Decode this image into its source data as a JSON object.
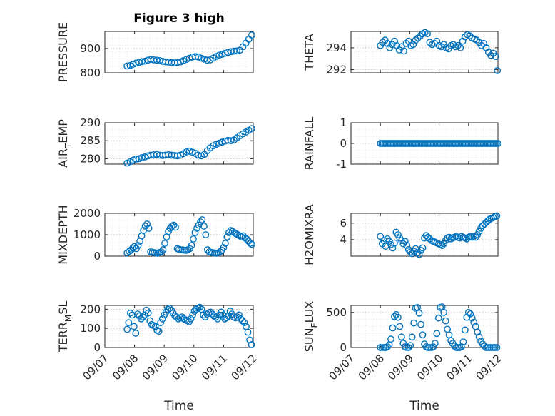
{
  "figure": {
    "title": "Figure 3 high",
    "xlabel": "Time",
    "x_ticks": [
      "09/07",
      "09/08",
      "09/09",
      "09/10",
      "09/11",
      "09/12"
    ]
  },
  "colors": {
    "series": "#0072BD",
    "axis": "#262626"
  },
  "chart_data": [
    {
      "type": "scatter",
      "id": "pressure",
      "ylabel": "PRESSURE",
      "xlim": [
        0,
        5
      ],
      "ylim": [
        800,
        970
      ],
      "yticks": [
        800,
        900
      ],
      "grid": true,
      "x": [
        0.75,
        0.85,
        0.95,
        1.05,
        1.15,
        1.25,
        1.35,
        1.45,
        1.55,
        1.65,
        1.75,
        1.85,
        1.95,
        2.05,
        2.15,
        2.25,
        2.35,
        2.45,
        2.55,
        2.65,
        2.75,
        2.85,
        2.95,
        3.05,
        3.15,
        3.25,
        3.35,
        3.45,
        3.55,
        3.65,
        3.75,
        3.85,
        3.95,
        4.05,
        4.15,
        4.25,
        4.35,
        4.45,
        4.55,
        4.65,
        4.75,
        4.85,
        4.95
      ],
      "y": [
        828,
        830,
        835,
        840,
        843,
        846,
        848,
        852,
        855,
        853,
        852,
        850,
        847,
        845,
        844,
        842,
        841,
        842,
        845,
        850,
        855,
        860,
        865,
        867,
        865,
        860,
        856,
        852,
        853,
        860,
        867,
        872,
        876,
        880,
        884,
        887,
        889,
        890,
        893,
        907,
        922,
        938,
        955
      ]
    },
    {
      "type": "scatter",
      "id": "theta",
      "ylabel": "THETA",
      "xlim": [
        0,
        5
      ],
      "ylim": [
        291.7,
        295.5
      ],
      "yticks": [
        292,
        294
      ],
      "grid": true,
      "x": [
        1.0,
        1.08,
        1.16,
        1.24,
        1.32,
        1.4,
        1.48,
        1.56,
        1.64,
        1.72,
        1.8,
        1.88,
        1.96,
        2.04,
        2.12,
        2.2,
        2.28,
        2.36,
        2.44,
        2.52,
        2.6,
        2.68,
        2.76,
        2.84,
        2.92,
        3.0,
        3.08,
        3.16,
        3.24,
        3.32,
        3.4,
        3.48,
        3.56,
        3.64,
        3.72,
        3.8,
        3.88,
        3.96,
        4.04,
        4.12,
        4.2,
        4.28,
        4.36,
        4.44,
        4.52,
        4.6,
        4.68,
        4.76,
        4.84,
        4.92,
        4.98
      ],
      "y": [
        294.2,
        294.5,
        294.7,
        294.4,
        294.0,
        294.3,
        294.6,
        294.2,
        293.8,
        294.1,
        293.7,
        294.4,
        294.6,
        294.2,
        294.3,
        294.7,
        294.9,
        295.1,
        295.3,
        295.4,
        295.3,
        294.5,
        294.3,
        294.4,
        294.6,
        294.2,
        294.1,
        294.3,
        294.0,
        293.9,
        294.2,
        294.3,
        294.1,
        294.2,
        294.0,
        294.6,
        295.0,
        295.2,
        295.1,
        294.9,
        294.8,
        294.7,
        294.5,
        294.2,
        294.4,
        294.0,
        293.6,
        293.3,
        293.5,
        293.2,
        291.9
      ]
    },
    {
      "type": "scatter",
      "id": "air_temp",
      "ylabel": "AIR_TEMP",
      "ylabel_main": "AIR",
      "ylabel_sub": "T",
      "ylabel_rest": "EMP",
      "xlim": [
        0,
        5
      ],
      "ylim": [
        278.5,
        290
      ],
      "yticks": [
        280,
        285,
        290
      ],
      "grid": true,
      "x": [
        0.75,
        0.85,
        0.95,
        1.05,
        1.15,
        1.25,
        1.35,
        1.45,
        1.55,
        1.65,
        1.75,
        1.85,
        1.95,
        2.05,
        2.15,
        2.25,
        2.35,
        2.45,
        2.55,
        2.65,
        2.75,
        2.85,
        2.95,
        3.05,
        3.15,
        3.25,
        3.35,
        3.45,
        3.55,
        3.65,
        3.75,
        3.85,
        3.95,
        4.05,
        4.15,
        4.25,
        4.35,
        4.45,
        4.55,
        4.65,
        4.75,
        4.85,
        4.95
      ],
      "y": [
        278.8,
        279.2,
        279.6,
        279.9,
        280.0,
        280.3,
        280.5,
        280.8,
        281.0,
        281.1,
        281.2,
        281.0,
        280.9,
        281.0,
        281.1,
        281.0,
        280.9,
        280.8,
        281.0,
        281.4,
        281.9,
        282.1,
        281.8,
        281.5,
        281.0,
        280.8,
        281.2,
        282.2,
        283.0,
        283.6,
        284.0,
        284.3,
        284.6,
        284.9,
        285.1,
        285.0,
        285.2,
        285.8,
        286.4,
        286.9,
        287.4,
        287.9,
        288.4
      ]
    },
    {
      "type": "scatter",
      "id": "rainfall",
      "ylabel": "RAINFALL",
      "xlim": [
        0,
        5
      ],
      "ylim": [
        -1,
        1
      ],
      "yticks": [
        -1,
        0,
        1
      ],
      "grid": true,
      "x": [
        1.0,
        1.05,
        1.1,
        1.15,
        1.2,
        1.25,
        1.3,
        1.35,
        1.4,
        1.45,
        1.5,
        1.55,
        1.6,
        1.65,
        1.7,
        1.75,
        1.8,
        1.85,
        1.9,
        1.95,
        2.0,
        2.05,
        2.1,
        2.15,
        2.2,
        2.25,
        2.3,
        2.35,
        2.4,
        2.45,
        2.5,
        2.55,
        2.6,
        2.65,
        2.7,
        2.75,
        2.8,
        2.85,
        2.9,
        2.95,
        3.0,
        3.05,
        3.1,
        3.15,
        3.2,
        3.25,
        3.3,
        3.35,
        3.4,
        3.45,
        3.5,
        3.55,
        3.6,
        3.65,
        3.7,
        3.75,
        3.8,
        3.85,
        3.9,
        3.95,
        4.0,
        4.05,
        4.1,
        4.15,
        4.2,
        4.25,
        4.3,
        4.35,
        4.4,
        4.45,
        4.5,
        4.55,
        4.6,
        4.65,
        4.7,
        4.75,
        4.8,
        4.85,
        4.9,
        4.95,
        5.0
      ],
      "y": [
        0,
        0,
        0,
        0,
        0,
        0,
        0,
        0,
        0,
        0,
        0,
        0,
        0,
        0,
        0,
        0,
        0,
        0,
        0,
        0,
        0,
        0,
        0,
        0,
        0,
        0,
        0,
        0,
        0,
        0,
        0,
        0,
        0,
        0,
        0,
        0,
        0,
        0,
        0,
        0,
        0,
        0,
        0,
        0,
        0,
        0,
        0,
        0,
        0,
        0,
        0,
        0,
        0,
        0,
        0,
        0,
        0,
        0,
        0,
        0,
        0,
        0,
        0,
        0,
        0,
        0,
        0,
        0,
        0,
        0,
        0,
        0,
        0,
        0,
        0,
        0,
        0,
        0,
        0,
        0,
        0
      ]
    },
    {
      "type": "scatter",
      "id": "mixdepth",
      "ylabel": "MIXDEPTH",
      "xlim": [
        0,
        5
      ],
      "ylim": [
        0,
        2000
      ],
      "yticks": [
        0,
        1000,
        2000
      ],
      "grid": true,
      "x": [
        0.75,
        0.82,
        0.88,
        0.94,
        1.0,
        1.06,
        1.12,
        1.18,
        1.24,
        1.3,
        1.36,
        1.42,
        1.48,
        1.54,
        1.6,
        1.66,
        1.72,
        1.78,
        1.84,
        1.9,
        1.96,
        2.02,
        2.08,
        2.14,
        2.2,
        2.26,
        2.32,
        2.38,
        2.44,
        2.5,
        2.56,
        2.62,
        2.68,
        2.74,
        2.8,
        2.86,
        2.92,
        2.98,
        3.04,
        3.1,
        3.16,
        3.22,
        3.28,
        3.34,
        3.4,
        3.46,
        3.52,
        3.58,
        3.64,
        3.7,
        3.76,
        3.82,
        3.88,
        3.94,
        4.0,
        4.06,
        4.12,
        4.18,
        4.24,
        4.3,
        4.36,
        4.42,
        4.48,
        4.54,
        4.6,
        4.66,
        4.72,
        4.78,
        4.84,
        4.9,
        4.95
      ],
      "y": [
        150,
        220,
        280,
        380,
        450,
        350,
        500,
        700,
        950,
        1200,
        1400,
        1500,
        1300,
        200,
        180,
        160,
        150,
        140,
        170,
        200,
        300,
        600,
        900,
        1150,
        1300,
        1400,
        1450,
        1350,
        350,
        320,
        300,
        290,
        280,
        270,
        300,
        350,
        500,
        800,
        1100,
        1300,
        1450,
        1600,
        1700,
        1400,
        1000,
        300,
        200,
        180,
        160,
        150,
        140,
        150,
        200,
        280,
        400,
        600,
        900,
        1100,
        1200,
        1150,
        1100,
        1050,
        1000,
        950,
        900,
        950,
        850,
        800,
        700,
        600,
        550
      ]
    },
    {
      "type": "scatter",
      "id": "h2omixra",
      "ylabel": "H2OMIXRA",
      "xlim": [
        0,
        5
      ],
      "ylim": [
        2,
        7.2
      ],
      "yticks": [
        4,
        6
      ],
      "grid": true,
      "x": [
        1.0,
        1.06,
        1.12,
        1.18,
        1.24,
        1.3,
        1.36,
        1.42,
        1.48,
        1.54,
        1.6,
        1.66,
        1.72,
        1.78,
        1.84,
        1.9,
        1.96,
        2.02,
        2.08,
        2.14,
        2.2,
        2.26,
        2.32,
        2.38,
        2.44,
        2.5,
        2.56,
        2.62,
        2.68,
        2.74,
        2.8,
        2.86,
        2.92,
        2.98,
        3.04,
        3.1,
        3.16,
        3.22,
        3.28,
        3.34,
        3.4,
        3.46,
        3.52,
        3.58,
        3.64,
        3.7,
        3.76,
        3.82,
        3.88,
        3.94,
        4.0,
        4.06,
        4.12,
        4.18,
        4.24,
        4.3,
        4.36,
        4.42,
        4.48,
        4.54,
        4.6,
        4.66,
        4.72,
        4.78,
        4.84,
        4.9,
        4.96
      ],
      "y": [
        4.4,
        3.5,
        3.9,
        3.2,
        4.1,
        3.8,
        3.4,
        3.0,
        3.6,
        4.9,
        4.6,
        4.2,
        3.9,
        3.5,
        3.8,
        3.3,
        2.8,
        2.5,
        2.3,
        2.6,
        2.9,
        2.4,
        2.2,
        2.7,
        3.0,
        4.2,
        4.5,
        4.3,
        4.1,
        3.9,
        3.8,
        3.7,
        3.6,
        3.5,
        3.4,
        3.3,
        3.5,
        3.9,
        4.2,
        4.3,
        4.1,
        4.2,
        4.3,
        4.4,
        4.3,
        4.2,
        4.4,
        4.3,
        4.2,
        4.1,
        4.3,
        4.4,
        4.3,
        4.4,
        4.3,
        4.6,
        5.0,
        5.4,
        5.7,
        5.9,
        6.1,
        6.3,
        6.5,
        6.6,
        6.7,
        6.8,
        6.9
      ]
    },
    {
      "type": "scatter",
      "id": "terr_msl",
      "ylabel": "TERR_MSL",
      "ylabel_main": "TERR",
      "ylabel_sub": "M",
      "ylabel_rest": "SL",
      "xlim": [
        0,
        5
      ],
      "ylim": [
        0,
        220
      ],
      "yticks": [
        0,
        100,
        200
      ],
      "grid": true,
      "x": [
        0.75,
        0.8,
        0.86,
        0.92,
        0.98,
        1.04,
        1.1,
        1.16,
        1.22,
        1.28,
        1.34,
        1.4,
        1.46,
        1.52,
        1.58,
        1.64,
        1.7,
        1.76,
        1.82,
        1.88,
        1.94,
        2.0,
        2.06,
        2.12,
        2.18,
        2.24,
        2.3,
        2.36,
        2.42,
        2.48,
        2.54,
        2.6,
        2.66,
        2.72,
        2.78,
        2.84,
        2.9,
        2.96,
        3.02,
        3.08,
        3.14,
        3.2,
        3.26,
        3.32,
        3.38,
        3.44,
        3.5,
        3.56,
        3.62,
        3.68,
        3.74,
        3.8,
        3.86,
        3.92,
        3.98,
        4.04,
        4.1,
        4.16,
        4.22,
        4.28,
        4.34,
        4.4,
        4.46,
        4.52,
        4.58,
        4.64,
        4.7,
        4.76,
        4.82,
        4.88,
        4.94
      ],
      "y": [
        95,
        130,
        180,
        170,
        110,
        75,
        175,
        165,
        150,
        160,
        170,
        195,
        180,
        140,
        120,
        115,
        110,
        90,
        85,
        130,
        150,
        170,
        185,
        200,
        205,
        195,
        180,
        165,
        160,
        150,
        155,
        160,
        150,
        145,
        140,
        135,
        150,
        170,
        190,
        200,
        205,
        210,
        200,
        170,
        160,
        175,
        180,
        185,
        175,
        165,
        160,
        150,
        170,
        185,
        170,
        150,
        155,
        165,
        190,
        175,
        160,
        155,
        160,
        170,
        150,
        140,
        130,
        110,
        80,
        40,
        15
      ]
    },
    {
      "type": "scatter",
      "id": "sun_flux",
      "ylabel": "SUN_FLUX",
      "ylabel_main": "SUN",
      "ylabel_sub": "F",
      "ylabel_rest": "LUX",
      "xlim": [
        0,
        5
      ],
      "ylim": [
        0,
        600
      ],
      "yticks": [
        0,
        500
      ],
      "grid": true,
      "x": [
        1.0,
        1.06,
        1.12,
        1.18,
        1.24,
        1.3,
        1.36,
        1.42,
        1.48,
        1.54,
        1.6,
        1.66,
        1.72,
        1.78,
        1.84,
        1.9,
        1.96,
        2.02,
        2.08,
        2.14,
        2.2,
        2.26,
        2.32,
        2.38,
        2.44,
        2.5,
        2.56,
        2.62,
        2.68,
        2.74,
        2.8,
        2.86,
        2.92,
        2.98,
        3.04,
        3.1,
        3.16,
        3.22,
        3.28,
        3.34,
        3.4,
        3.46,
        3.52,
        3.58,
        3.64,
        3.7,
        3.76,
        3.82,
        3.88,
        3.94,
        4.0,
        4.06,
        4.12,
        4.18,
        4.24,
        4.3,
        4.36,
        4.42,
        4.48,
        4.54,
        4.6,
        4.66,
        4.72,
        4.78,
        4.84,
        4.9,
        4.96
      ],
      "y": [
        0,
        0,
        0,
        0,
        10,
        40,
        120,
        280,
        440,
        470,
        430,
        300,
        150,
        60,
        10,
        0,
        0,
        30,
        150,
        350,
        560,
        570,
        490,
        330,
        180,
        50,
        10,
        0,
        0,
        0,
        10,
        60,
        200,
        420,
        570,
        580,
        500,
        380,
        260,
        180,
        100,
        60,
        20,
        0,
        0,
        0,
        10,
        80,
        250,
        430,
        500,
        480,
        420,
        360,
        300,
        220,
        150,
        90,
        50,
        20,
        0,
        0,
        0,
        0,
        0,
        0,
        0
      ]
    }
  ]
}
